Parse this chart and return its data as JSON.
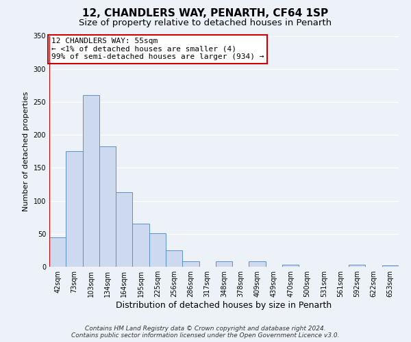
{
  "title": "12, CHANDLERS WAY, PENARTH, CF64 1SP",
  "subtitle": "Size of property relative to detached houses in Penarth",
  "xlabel": "Distribution of detached houses by size in Penarth",
  "ylabel": "Number of detached properties",
  "bar_labels": [
    "42sqm",
    "73sqm",
    "103sqm",
    "134sqm",
    "164sqm",
    "195sqm",
    "225sqm",
    "256sqm",
    "286sqm",
    "317sqm",
    "348sqm",
    "378sqm",
    "409sqm",
    "439sqm",
    "470sqm",
    "500sqm",
    "531sqm",
    "561sqm",
    "592sqm",
    "622sqm",
    "653sqm"
  ],
  "bar_values": [
    45,
    175,
    260,
    183,
    113,
    65,
    51,
    25,
    8,
    0,
    8,
    0,
    8,
    0,
    3,
    0,
    0,
    0,
    3,
    0,
    2
  ],
  "bar_color": "#ccd9ee",
  "bar_edge_color": "#5b8fcc",
  "ylim": [
    0,
    350
  ],
  "yticks": [
    0,
    50,
    100,
    150,
    200,
    250,
    300,
    350
  ],
  "annotation_title": "12 CHANDLERS WAY: 55sqm",
  "annotation_line1": "← <1% of detached houses are smaller (4)",
  "annotation_line2": "99% of semi-detached houses are larger (934) →",
  "annotation_box_color": "#ffffff",
  "annotation_box_edge": "#cc0000",
  "red_line_color": "#cc0000",
  "footer1": "Contains HM Land Registry data © Crown copyright and database right 2024.",
  "footer2": "Contains public sector information licensed under the Open Government Licence v3.0.",
  "background_color": "#edf2f9",
  "grid_color": "#ffffff",
  "title_fontsize": 11,
  "subtitle_fontsize": 9.5,
  "xlabel_fontsize": 9,
  "ylabel_fontsize": 8,
  "tick_fontsize": 7,
  "annotation_fontsize": 8,
  "footer_fontsize": 6.5
}
